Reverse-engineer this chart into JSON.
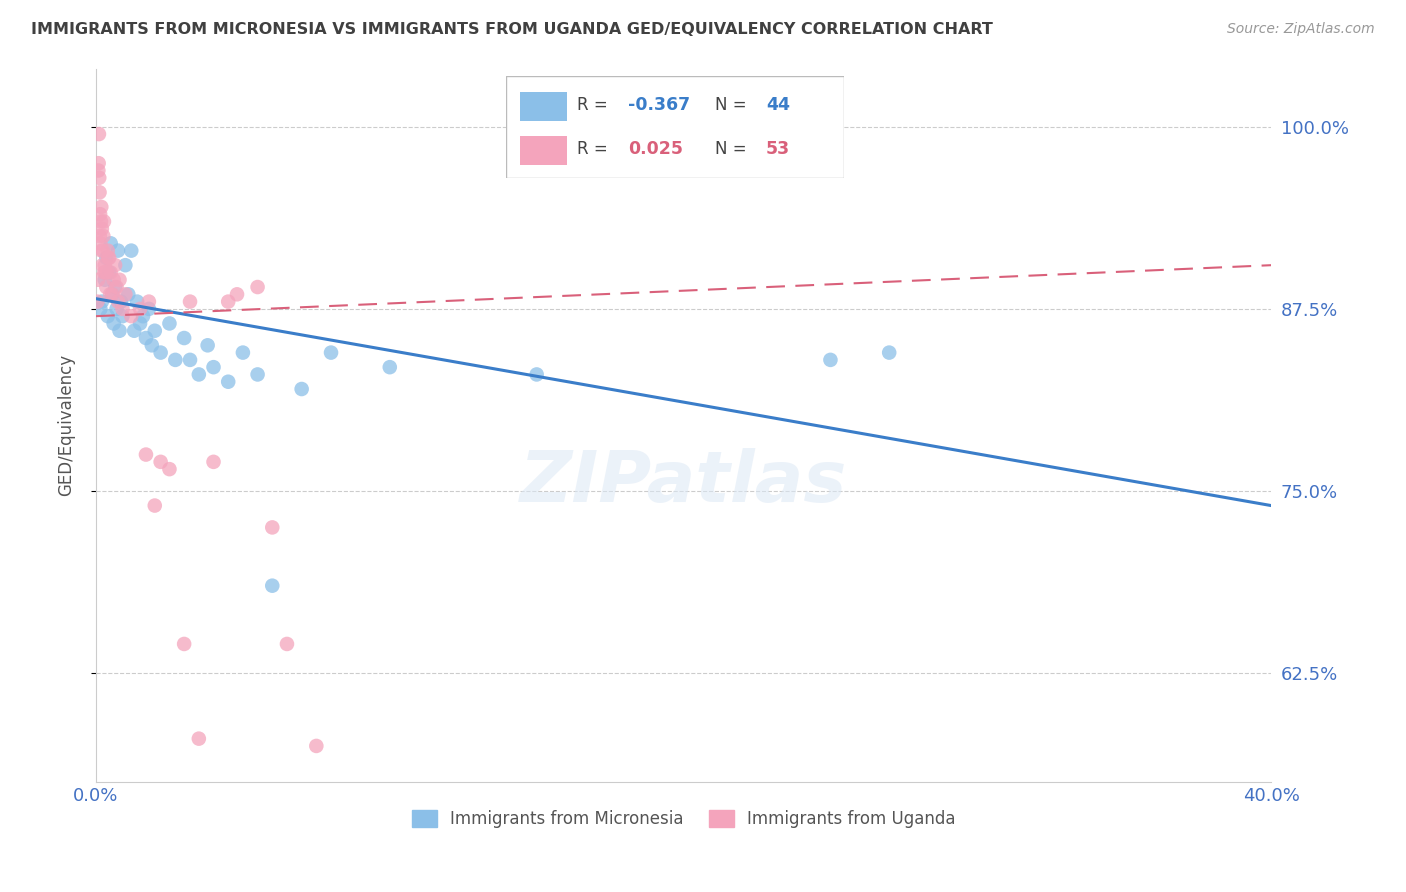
{
  "title": "IMMIGRANTS FROM MICRONESIA VS IMMIGRANTS FROM UGANDA GED/EQUIVALENCY CORRELATION CHART",
  "source": "Source: ZipAtlas.com",
  "ylabel": "GED/Equivalency",
  "xmin": 0.0,
  "xmax": 40.0,
  "ymin": 55.0,
  "ymax": 104.0,
  "ytick_vals": [
    62.5,
    75.0,
    87.5,
    100.0
  ],
  "ytick_labels": [
    "62.5%",
    "75.0%",
    "87.5%",
    "100.0%"
  ],
  "xtick_vals": [
    0.0,
    40.0
  ],
  "xtick_labels": [
    "0.0%",
    "40.0%"
  ],
  "legend_r_micronesia": "-0.367",
  "legend_n_micronesia": "44",
  "legend_r_uganda": "0.025",
  "legend_n_uganda": "53",
  "legend_label_micronesia": "Immigrants from Micronesia",
  "legend_label_uganda": "Immigrants from Uganda",
  "color_micronesia": "#8bbfe8",
  "color_uganda": "#f4a4bc",
  "color_trendline_micronesia": "#3a7dc9",
  "color_trendline_uganda": "#d9607a",
  "color_axis_labels": "#4472c4",
  "color_title": "#404040",
  "color_grid": "#cccccc",
  "trendline_mic_x0": 0.0,
  "trendline_mic_y0": 88.2,
  "trendline_mic_x1": 40.0,
  "trendline_mic_y1": 74.0,
  "trendline_uga_x0": 0.0,
  "trendline_uga_y0": 87.0,
  "trendline_uga_x1": 40.0,
  "trendline_uga_y1": 90.5,
  "micronesia_x": [
    0.15,
    0.2,
    0.3,
    0.35,
    0.4,
    0.45,
    0.5,
    0.55,
    0.6,
    0.65,
    0.7,
    0.75,
    0.8,
    0.85,
    0.9,
    1.0,
    1.1,
    1.2,
    1.3,
    1.4,
    1.5,
    1.6,
    1.7,
    1.8,
    1.9,
    2.0,
    2.2,
    2.5,
    2.7,
    3.0,
    3.2,
    3.5,
    3.8,
    4.0,
    4.5,
    5.0,
    5.5,
    6.0,
    7.0,
    8.0,
    10.0,
    15.0,
    25.0,
    27.0
  ],
  "micronesia_y": [
    87.5,
    88.0,
    89.5,
    91.0,
    87.0,
    90.0,
    92.0,
    88.5,
    86.5,
    89.0,
    87.5,
    91.5,
    86.0,
    88.0,
    87.0,
    90.5,
    88.5,
    91.5,
    86.0,
    88.0,
    86.5,
    87.0,
    85.5,
    87.5,
    85.0,
    86.0,
    84.5,
    86.5,
    84.0,
    85.5,
    84.0,
    83.0,
    85.0,
    83.5,
    82.5,
    84.5,
    83.0,
    68.5,
    82.0,
    84.5,
    83.5,
    83.0,
    84.0,
    84.5
  ],
  "uganda_x": [
    0.05,
    0.07,
    0.08,
    0.09,
    0.1,
    0.11,
    0.12,
    0.13,
    0.14,
    0.15,
    0.17,
    0.18,
    0.19,
    0.2,
    0.22,
    0.24,
    0.25,
    0.27,
    0.28,
    0.3,
    0.32,
    0.35,
    0.37,
    0.4,
    0.42,
    0.45,
    0.48,
    0.5,
    0.55,
    0.6,
    0.65,
    0.7,
    0.75,
    0.8,
    0.9,
    1.0,
    1.2,
    1.5,
    1.7,
    2.0,
    2.5,
    3.0,
    3.5,
    4.0,
    4.5,
    5.5,
    6.0,
    7.5,
    2.2,
    1.8,
    3.2,
    4.8,
    6.5
  ],
  "uganda_y": [
    88.0,
    89.5,
    97.0,
    97.5,
    99.5,
    96.5,
    95.5,
    92.5,
    94.0,
    92.0,
    93.5,
    94.5,
    91.5,
    93.0,
    90.5,
    91.5,
    92.5,
    93.5,
    90.0,
    90.5,
    90.0,
    89.0,
    90.0,
    91.5,
    91.0,
    91.0,
    88.5,
    90.0,
    88.5,
    89.5,
    90.5,
    89.0,
    88.0,
    89.5,
    87.5,
    88.5,
    87.0,
    87.5,
    77.5,
    74.0,
    76.5,
    64.5,
    58.0,
    77.0,
    88.0,
    89.0,
    72.5,
    57.5,
    77.0,
    88.0,
    88.0,
    88.5,
    64.5
  ]
}
